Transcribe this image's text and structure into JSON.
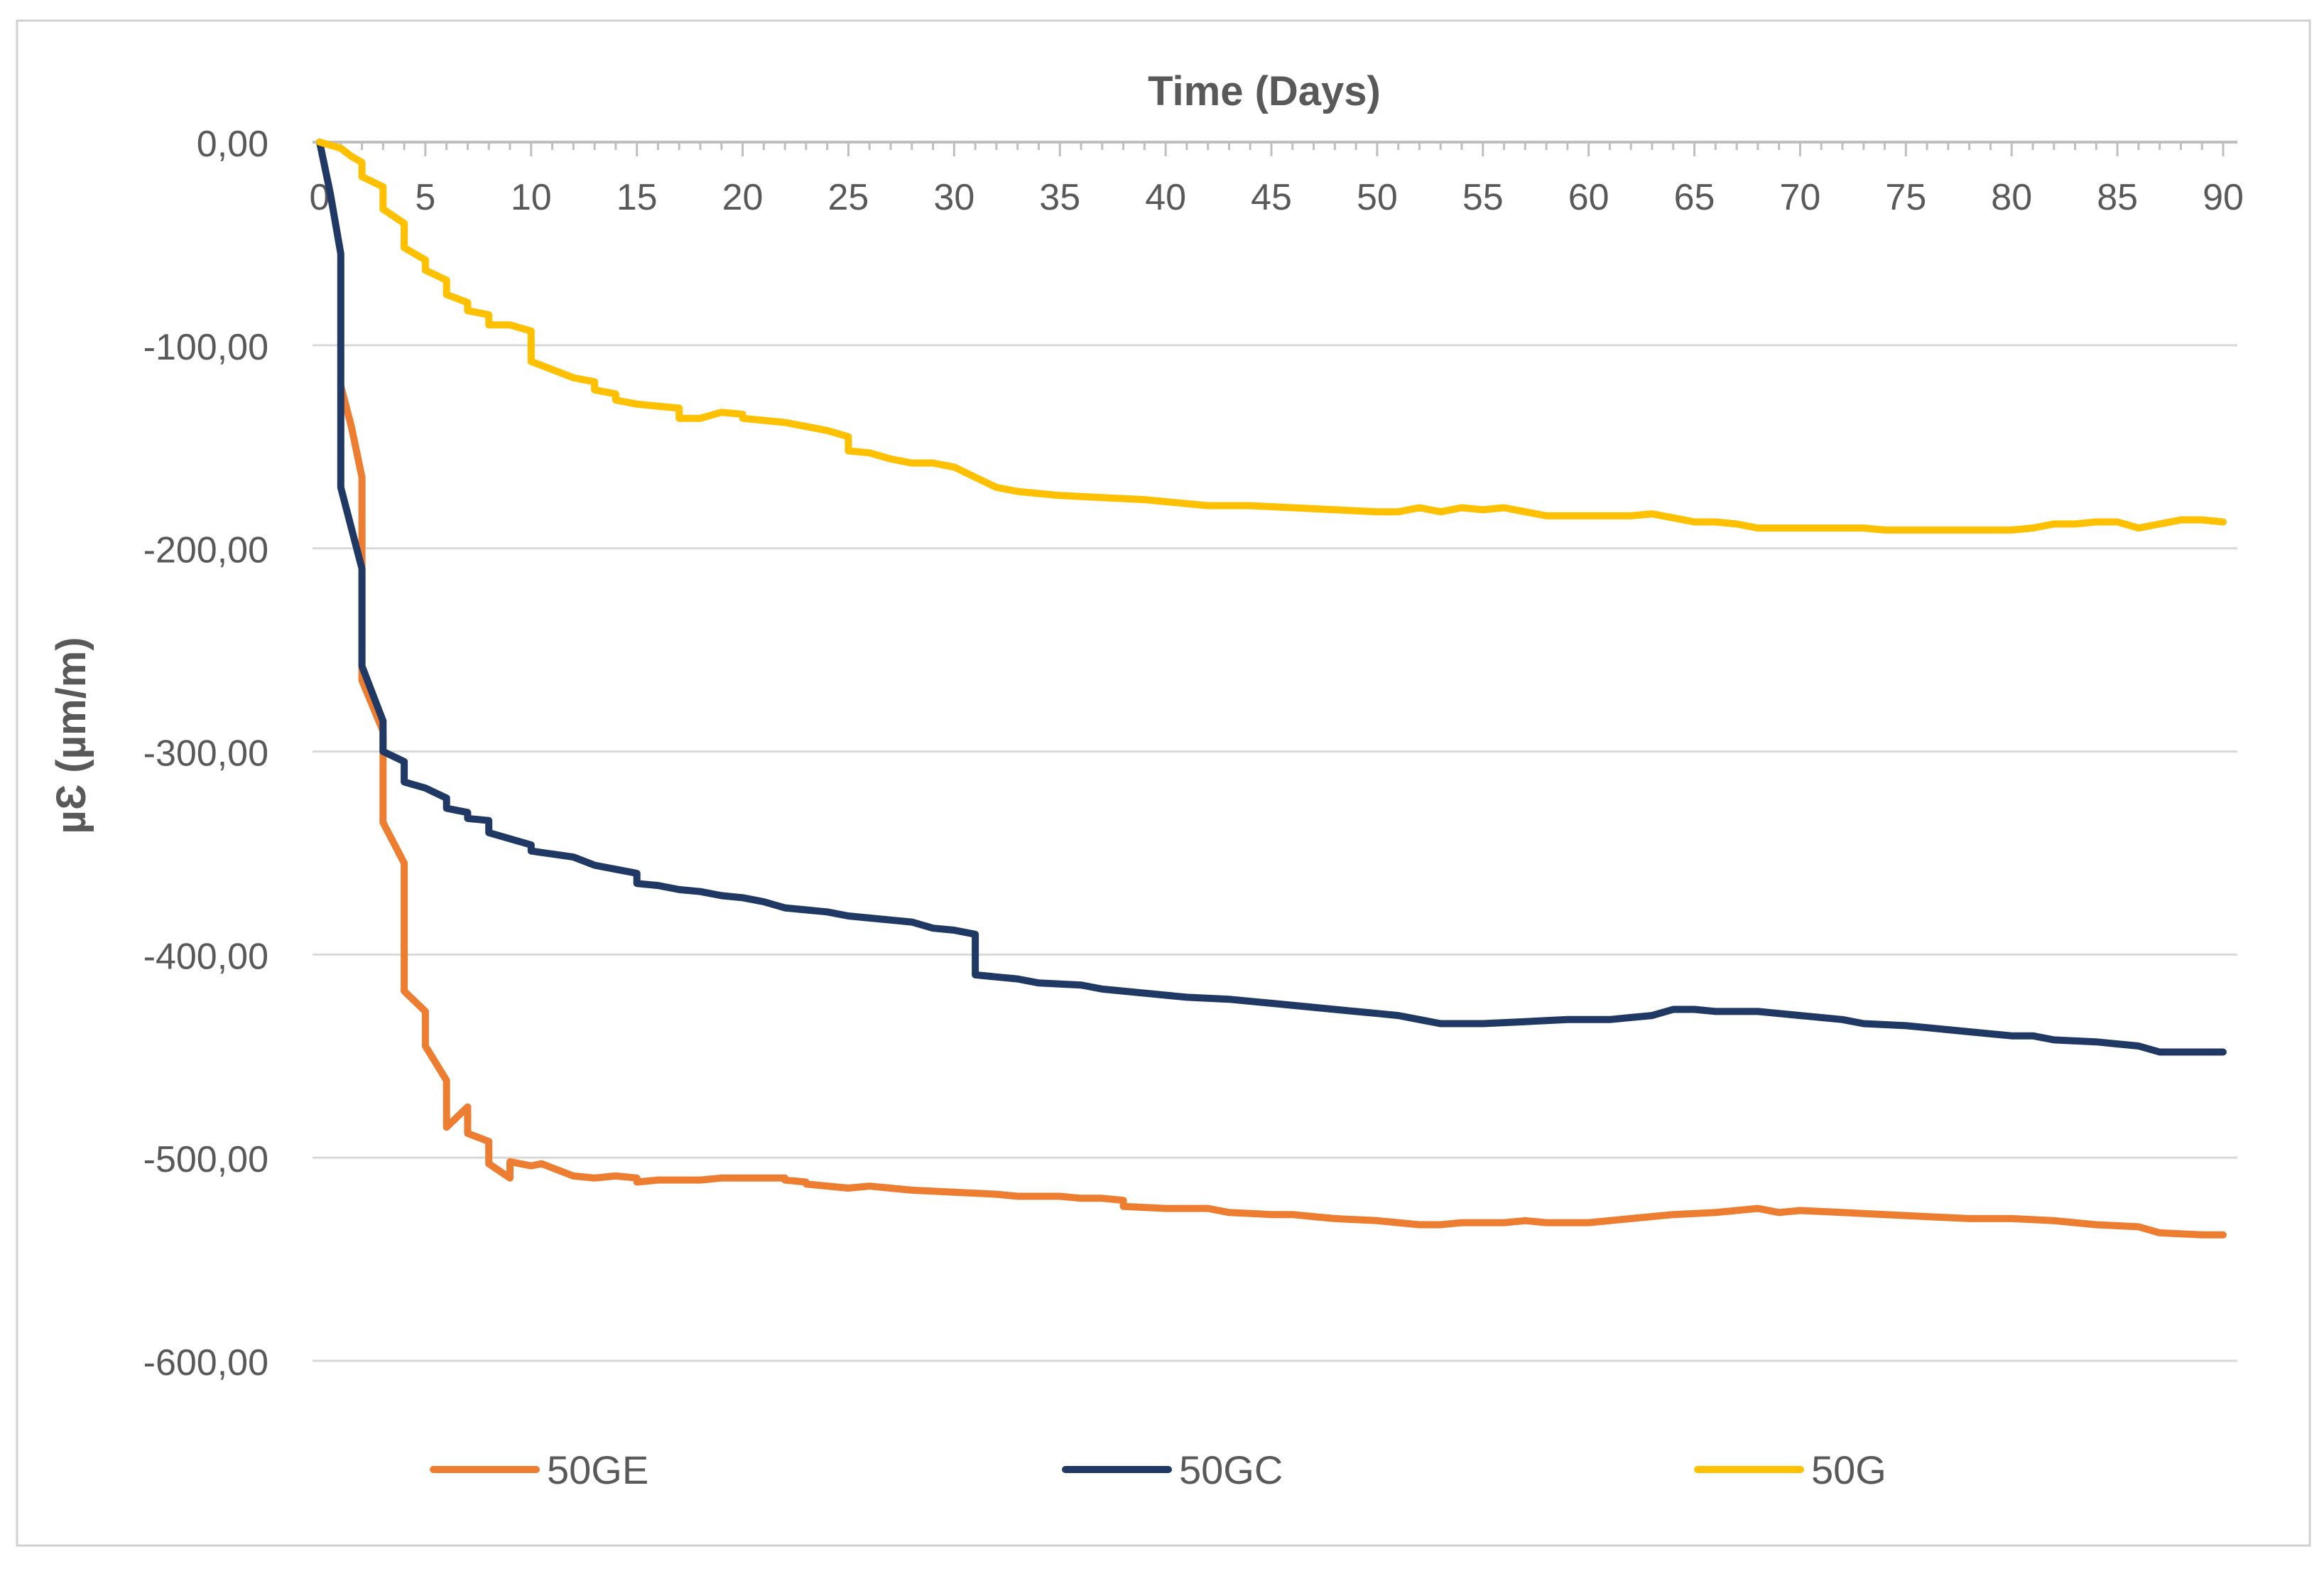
{
  "chart_data": {
    "type": "line",
    "title": "",
    "xlabel": "Time (Days)",
    "ylabel": "µƐ (µm/m)",
    "xlim": [
      0,
      90
    ],
    "ylim": [
      -600,
      0
    ],
    "x_ticks": [
      0,
      5,
      10,
      15,
      20,
      25,
      30,
      35,
      40,
      45,
      50,
      55,
      60,
      65,
      70,
      75,
      80,
      85,
      90
    ],
    "x_tick_labels": [
      "0",
      "5",
      "10",
      "15",
      "20",
      "25",
      "30",
      "35",
      "40",
      "45",
      "50",
      "55",
      "60",
      "65",
      "70",
      "75",
      "80",
      "85",
      "90"
    ],
    "y_ticks": [
      0,
      -100,
      -200,
      -300,
      -400,
      -500,
      -600
    ],
    "y_tick_labels": [
      "0,00",
      "-100,00",
      "-200,00",
      "-300,00",
      "-400,00",
      "-500,00",
      "-600,00"
    ],
    "grid": true,
    "legend_position": "bottom",
    "series": [
      {
        "name": "50GE",
        "color": "#ED7D31",
        "points": [
          [
            1,
            -120
          ],
          [
            1.5,
            -140
          ],
          [
            2,
            -165
          ],
          [
            2,
            -265
          ],
          [
            3,
            -290
          ],
          [
            3,
            -335
          ],
          [
            4,
            -355
          ],
          [
            4,
            -418
          ],
          [
            5,
            -428
          ],
          [
            5,
            -445
          ],
          [
            6,
            -462
          ],
          [
            6,
            -485
          ],
          [
            7,
            -475
          ],
          [
            7,
            -488
          ],
          [
            8,
            -492
          ],
          [
            8,
            -503
          ],
          [
            9,
            -510
          ],
          [
            9,
            -502
          ],
          [
            10,
            -504
          ],
          [
            10.5,
            -503
          ],
          [
            11,
            -505
          ],
          [
            12,
            -509
          ],
          [
            13,
            -510
          ],
          [
            14,
            -509
          ],
          [
            15,
            -510
          ],
          [
            15,
            -512
          ],
          [
            16,
            -511
          ],
          [
            17,
            -511
          ],
          [
            18,
            -511
          ],
          [
            19,
            -510
          ],
          [
            20,
            -510
          ],
          [
            21,
            -510
          ],
          [
            22,
            -510
          ],
          [
            22,
            -511
          ],
          [
            23,
            -512
          ],
          [
            23,
            -513
          ],
          [
            25,
            -515
          ],
          [
            26,
            -514
          ],
          [
            28,
            -516
          ],
          [
            30,
            -517
          ],
          [
            32,
            -518
          ],
          [
            33,
            -519
          ],
          [
            35,
            -519
          ],
          [
            36,
            -520
          ],
          [
            37,
            -520
          ],
          [
            38,
            -521
          ],
          [
            38,
            -524
          ],
          [
            40,
            -525
          ],
          [
            42,
            -525
          ],
          [
            43,
            -527
          ],
          [
            45,
            -528
          ],
          [
            46,
            -528
          ],
          [
            47,
            -529
          ],
          [
            48,
            -530
          ],
          [
            50,
            -531
          ],
          [
            51,
            -532
          ],
          [
            52,
            -533
          ],
          [
            53,
            -533
          ],
          [
            54,
            -532
          ],
          [
            55,
            -532
          ],
          [
            56,
            -532
          ],
          [
            57,
            -531
          ],
          [
            58,
            -532
          ],
          [
            60,
            -532
          ],
          [
            62,
            -530
          ],
          [
            64,
            -528
          ],
          [
            66,
            -527
          ],
          [
            68,
            -525
          ],
          [
            69,
            -527
          ],
          [
            70,
            -526
          ],
          [
            72,
            -527
          ],
          [
            74,
            -528
          ],
          [
            76,
            -529
          ],
          [
            78,
            -530
          ],
          [
            80,
            -530
          ],
          [
            82,
            -531
          ],
          [
            84,
            -533
          ],
          [
            86,
            -534
          ],
          [
            87,
            -537
          ],
          [
            89,
            -538
          ],
          [
            90,
            -538
          ]
        ]
      },
      {
        "name": "50GC",
        "color": "#203864",
        "points": [
          [
            0,
            0
          ],
          [
            0.5,
            -25
          ],
          [
            1,
            -55
          ],
          [
            1,
            -170
          ],
          [
            2,
            -210
          ],
          [
            2,
            -258
          ],
          [
            3,
            -285
          ],
          [
            3,
            -300
          ],
          [
            4,
            -305
          ],
          [
            4,
            -315
          ],
          [
            5,
            -318
          ],
          [
            6,
            -323
          ],
          [
            6,
            -328
          ],
          [
            7,
            -330
          ],
          [
            7,
            -333
          ],
          [
            8,
            -334
          ],
          [
            8,
            -340
          ],
          [
            10,
            -346
          ],
          [
            10,
            -349
          ],
          [
            12,
            -352
          ],
          [
            13,
            -356
          ],
          [
            14,
            -358
          ],
          [
            15,
            -360
          ],
          [
            15,
            -365
          ],
          [
            16,
            -366
          ],
          [
            17,
            -368
          ],
          [
            18,
            -369
          ],
          [
            19,
            -371
          ],
          [
            20,
            -372
          ],
          [
            21,
            -374
          ],
          [
            22,
            -377
          ],
          [
            24,
            -379
          ],
          [
            25,
            -381
          ],
          [
            26,
            -382
          ],
          [
            28,
            -384
          ],
          [
            29,
            -387
          ],
          [
            30,
            -388
          ],
          [
            31,
            -390
          ],
          [
            31,
            -410
          ],
          [
            32,
            -411
          ],
          [
            33,
            -412
          ],
          [
            34,
            -414
          ],
          [
            36,
            -415
          ],
          [
            37,
            -417
          ],
          [
            39,
            -419
          ],
          [
            41,
            -421
          ],
          [
            43,
            -422
          ],
          [
            45,
            -424
          ],
          [
            47,
            -426
          ],
          [
            49,
            -428
          ],
          [
            50,
            -429
          ],
          [
            51,
            -430
          ],
          [
            52,
            -432
          ],
          [
            53,
            -434
          ],
          [
            55,
            -434
          ],
          [
            57,
            -433
          ],
          [
            59,
            -432
          ],
          [
            60,
            -432
          ],
          [
            61,
            -432
          ],
          [
            62,
            -431
          ],
          [
            63,
            -430
          ],
          [
            64,
            -427
          ],
          [
            65,
            -427
          ],
          [
            66,
            -428
          ],
          [
            68,
            -428
          ],
          [
            70,
            -430
          ],
          [
            72,
            -432
          ],
          [
            73,
            -434
          ],
          [
            75,
            -435
          ],
          [
            76,
            -436
          ],
          [
            78,
            -438
          ],
          [
            80,
            -440
          ],
          [
            81,
            -440
          ],
          [
            82,
            -442
          ],
          [
            84,
            -443
          ],
          [
            85,
            -444
          ],
          [
            86,
            -445
          ],
          [
            87,
            -448
          ],
          [
            89,
            -448
          ],
          [
            90,
            -448
          ]
        ]
      },
      {
        "name": "50G",
        "color": "#FFC000",
        "points": [
          [
            0,
            0
          ],
          [
            1,
            -3
          ],
          [
            1.5,
            -7
          ],
          [
            2,
            -10
          ],
          [
            2,
            -17
          ],
          [
            3,
            -22
          ],
          [
            3,
            -33
          ],
          [
            4,
            -40
          ],
          [
            4,
            -52
          ],
          [
            5,
            -58
          ],
          [
            5,
            -63
          ],
          [
            6,
            -68
          ],
          [
            6,
            -75
          ],
          [
            7,
            -79
          ],
          [
            7,
            -83
          ],
          [
            8,
            -85
          ],
          [
            8,
            -90
          ],
          [
            9,
            -90
          ],
          [
            10,
            -93
          ],
          [
            10,
            -108
          ],
          [
            11,
            -112
          ],
          [
            12,
            -116
          ],
          [
            13,
            -118
          ],
          [
            13,
            -122
          ],
          [
            14,
            -124
          ],
          [
            14,
            -127
          ],
          [
            15,
            -129
          ],
          [
            16,
            -130
          ],
          [
            17,
            -131
          ],
          [
            17,
            -136
          ],
          [
            18,
            -136
          ],
          [
            19,
            -133
          ],
          [
            20,
            -134
          ],
          [
            20,
            -136
          ],
          [
            22,
            -138
          ],
          [
            23,
            -140
          ],
          [
            24,
            -142
          ],
          [
            25,
            -145
          ],
          [
            25,
            -152
          ],
          [
            26,
            -153
          ],
          [
            27,
            -156
          ],
          [
            28,
            -158
          ],
          [
            29,
            -158
          ],
          [
            30,
            -160
          ],
          [
            31,
            -165
          ],
          [
            32,
            -170
          ],
          [
            33,
            -172
          ],
          [
            34,
            -173
          ],
          [
            35,
            -174
          ],
          [
            37,
            -175
          ],
          [
            39,
            -176
          ],
          [
            41,
            -178
          ],
          [
            42,
            -179
          ],
          [
            44,
            -179
          ],
          [
            46,
            -180
          ],
          [
            48,
            -181
          ],
          [
            50,
            -182
          ],
          [
            51,
            -182
          ],
          [
            52,
            -180
          ],
          [
            53,
            -182
          ],
          [
            54,
            -180
          ],
          [
            55,
            -181
          ],
          [
            56,
            -180
          ],
          [
            57,
            -182
          ],
          [
            58,
            -184
          ],
          [
            60,
            -184
          ],
          [
            62,
            -184
          ],
          [
            63,
            -183
          ],
          [
            64,
            -185
          ],
          [
            65,
            -187
          ],
          [
            66,
            -187
          ],
          [
            67,
            -188
          ],
          [
            68,
            -190
          ],
          [
            70,
            -190
          ],
          [
            72,
            -190
          ],
          [
            73,
            -190
          ],
          [
            74,
            -191
          ],
          [
            76,
            -191
          ],
          [
            78,
            -191
          ],
          [
            80,
            -191
          ],
          [
            81,
            -190
          ],
          [
            82,
            -188
          ],
          [
            83,
            -188
          ],
          [
            84,
            -187
          ],
          [
            85,
            -187
          ],
          [
            86,
            -190
          ],
          [
            87,
            -188
          ],
          [
            88,
            -186
          ],
          [
            89,
            -186
          ],
          [
            90,
            -187
          ]
        ]
      }
    ]
  }
}
